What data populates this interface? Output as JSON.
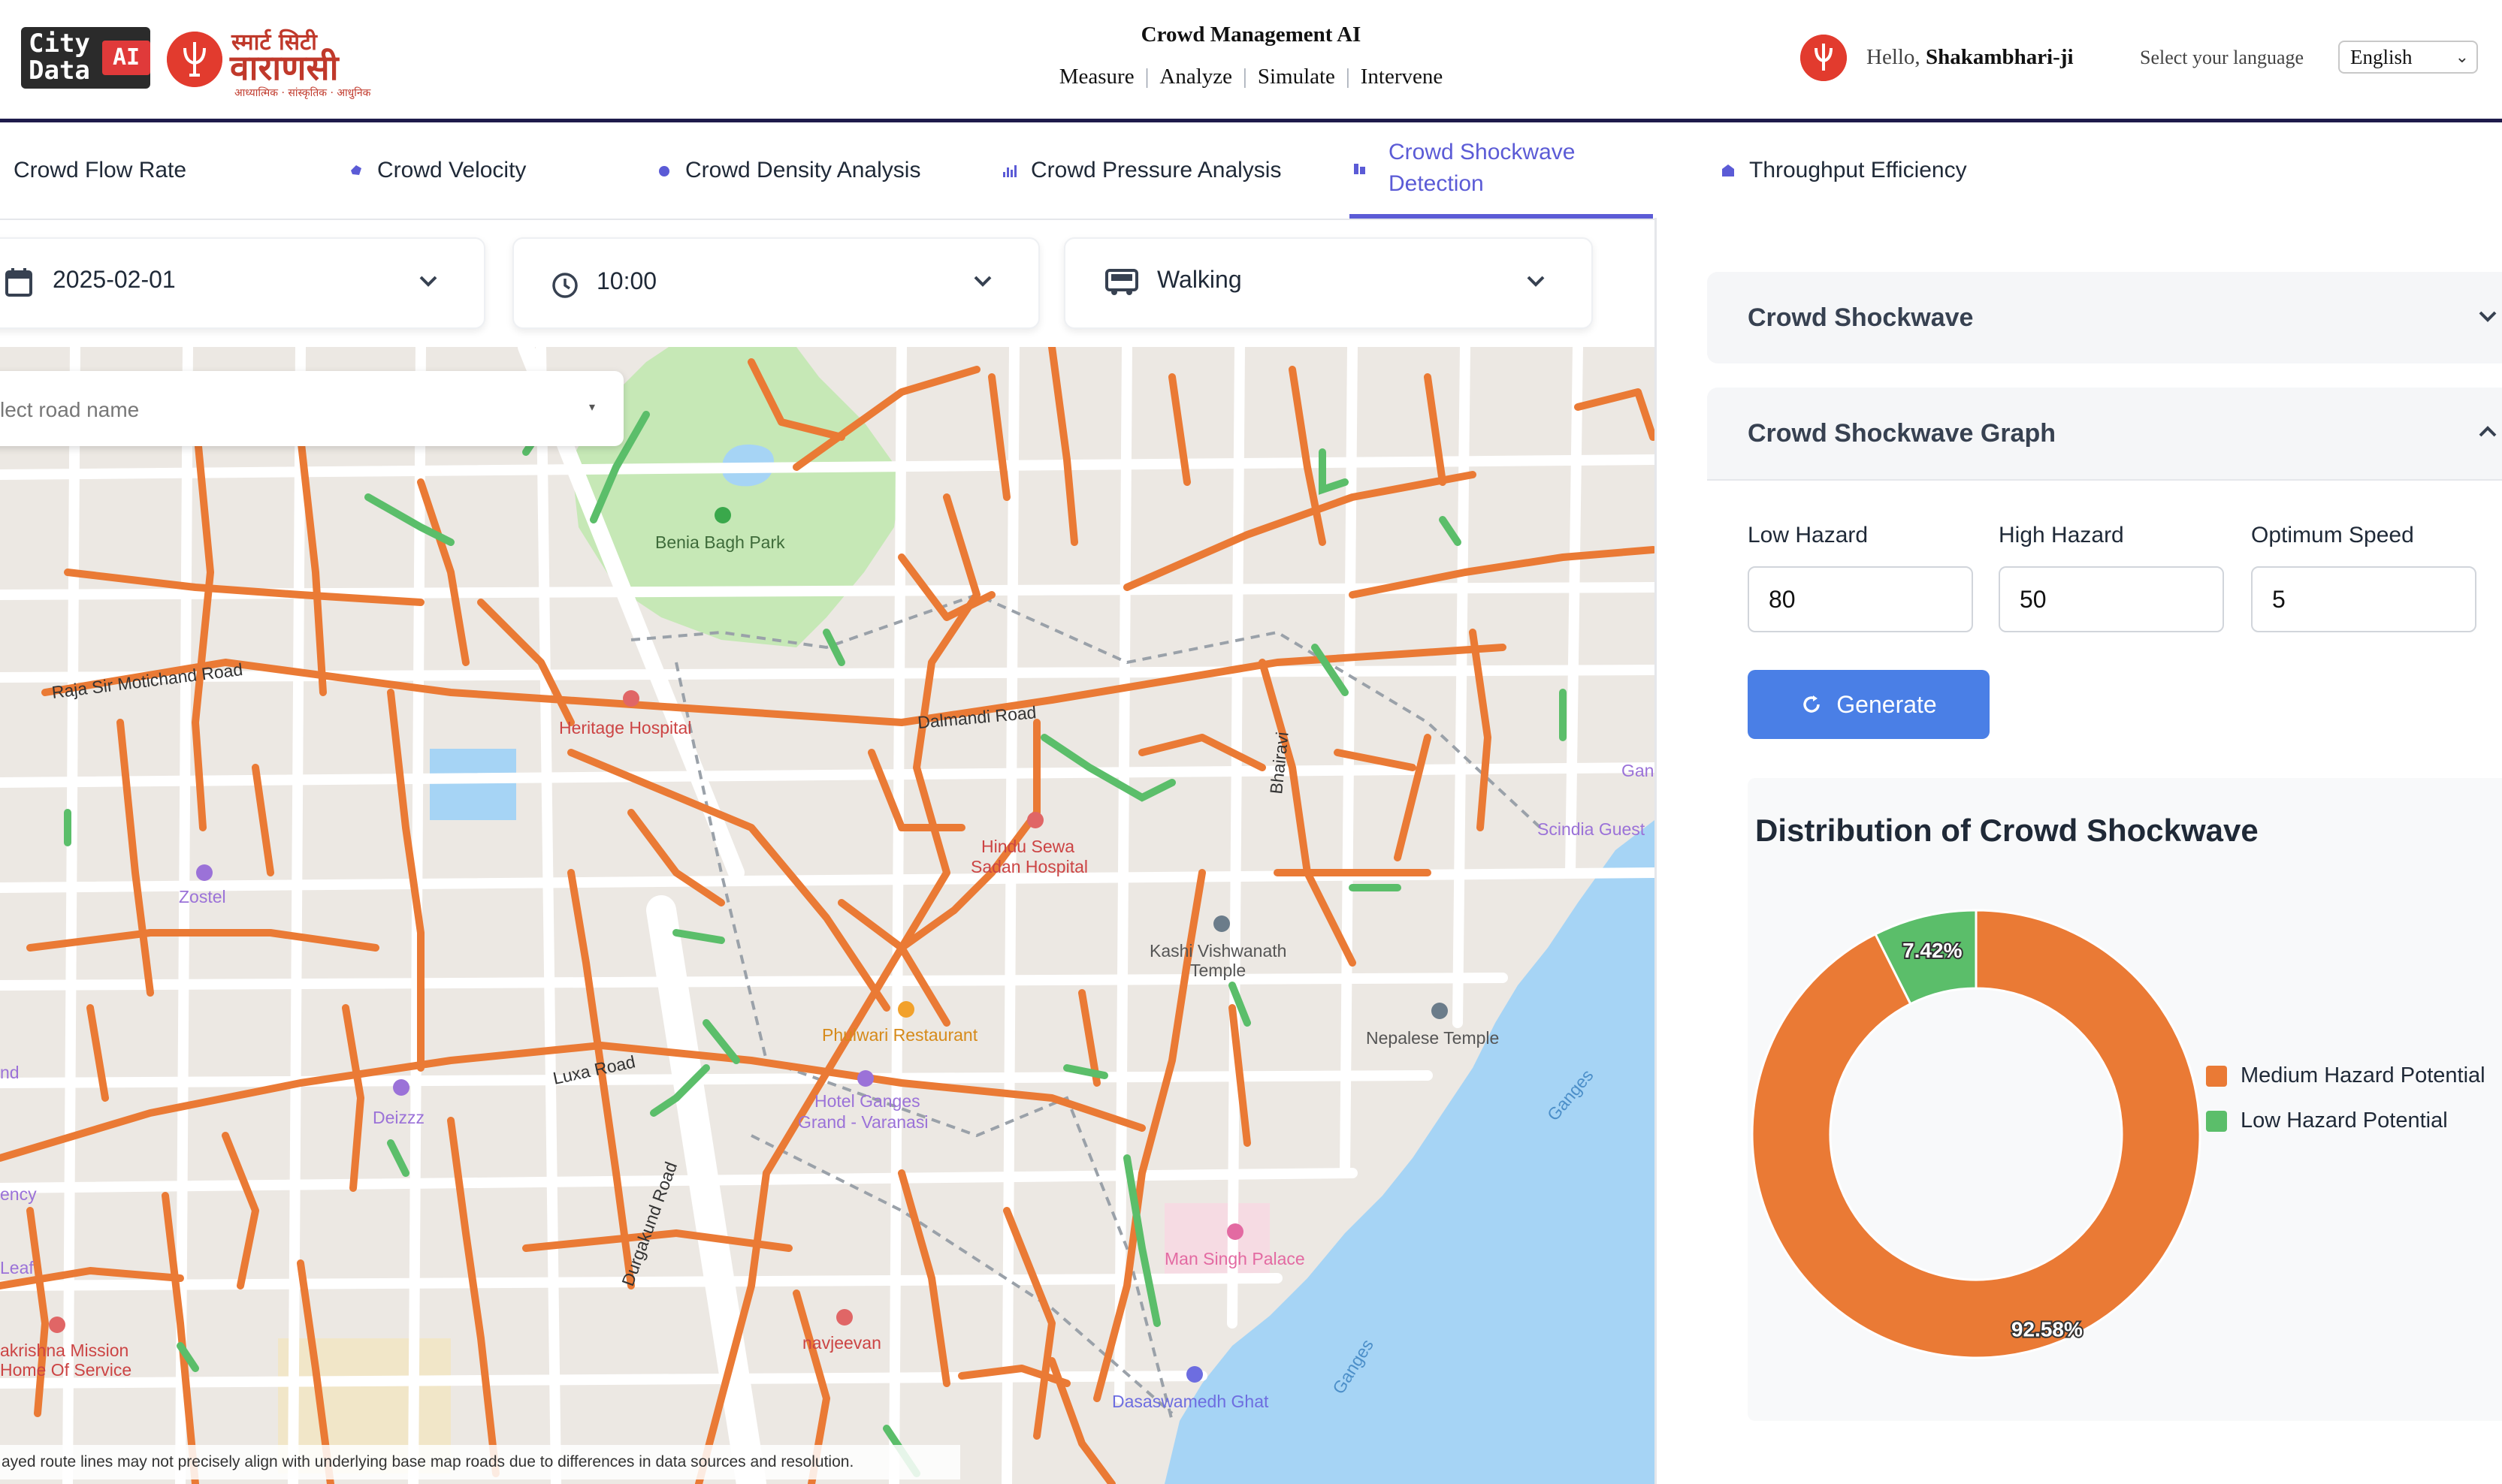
{
  "header": {
    "logo_citydata_top": "City",
    "logo_citydata_bottom": "Data",
    "logo_ai": "AI",
    "smartcity_line1": "स्मार्ट सिटी",
    "smartcity_line2": "वाराणसी",
    "smartcity_line3": "आध्यात्मिक · सांस्कृतिक · आधुनिक",
    "title": "Crowd Management AI",
    "nav": [
      "Measure",
      "Analyze",
      "Simulate",
      "Intervene"
    ],
    "greeting": "Hello,",
    "user_name": "Shakambhari-ji",
    "language_label": "Select your language",
    "language_value": "English"
  },
  "tabs": [
    {
      "label": "Crowd Flow Rate",
      "icon": "flow-icon"
    },
    {
      "label": "Crowd Velocity",
      "icon": "velocity-icon"
    },
    {
      "label": "Crowd Density Analysis",
      "icon": "density-icon"
    },
    {
      "label": "Crowd Pressure Analysis",
      "icon": "bar-chart-icon"
    },
    {
      "label": "Crowd Shockwave Detection",
      "icon": "shockwave-icon",
      "active": true
    },
    {
      "label": "Throughput Efficiency",
      "icon": "throughput-icon"
    }
  ],
  "filters": {
    "date": "2025-02-01",
    "time": "10:00",
    "mode": "Walking"
  },
  "map": {
    "road_select_placeholder": "lect road name",
    "note": "ayed route lines may not precisely align with underlying base map roads due to differences in data sources and resolution.",
    "labels": {
      "benia_bagh": "Benia Bagh Park",
      "raja_road": "Raja Sir Motichand Road",
      "heritage": "Heritage Hospital",
      "dalmandi": "Dalmandi Road",
      "bhairavi": "Bhairavi",
      "gan": "Gan",
      "scindia": "Scindia Guest",
      "zostel": "Zostel",
      "hindu_sewa_1": "Hindu Sewa",
      "hindu_sewa_2": "Sadan Hospital",
      "kashi_1": "Kashi Vishwanath",
      "kashi_2": "Temple",
      "nepalese": "Nepalese Temple",
      "phulwari": "Phulwari Restaurant",
      "luxa": "Luxa Road",
      "hotel_1": "Hotel Ganges",
      "hotel_2": "Grand - Varanasi",
      "ganges_1": "Ganges",
      "ganges_2": "Ganges",
      "nd": "nd",
      "deizzz": "Deizzz",
      "ency": "ency",
      "leaf": "Leaf",
      "durgakund": "Durgakund Road",
      "man_singh": "Man Singh Palace",
      "mission_1": "akrishna Mission",
      "mission_2": "Home Of Service",
      "navjeevan": "navjeevan",
      "dasaswamedh": "Dasaswamedh Ghat"
    }
  },
  "panel": {
    "section1_title": "Crowd Shockwave",
    "section2_title": "Crowd Shockwave Graph",
    "low_hazard_label": "Low Hazard",
    "low_hazard_value": "80",
    "high_hazard_label": "High Hazard",
    "high_hazard_value": "50",
    "optimum_speed_label": "Optimum Speed",
    "optimum_speed_value": "5",
    "generate_label": "Generate"
  },
  "colors": {
    "accent": "#5b5bd6",
    "medium_hazard": "#ea7a35",
    "low_hazard": "#5bbe6a",
    "button": "#4a7fe6",
    "water": "#a6d4f5",
    "park": "#c6e8b6"
  },
  "chart_data": {
    "type": "pie",
    "title": "Distribution of Crowd Shockwave",
    "series": [
      {
        "name": "Medium Hazard Potential",
        "value": 92.58,
        "label": "92.58%",
        "color": "#ea7a35"
      },
      {
        "name": "Low Hazard Potential",
        "value": 7.42,
        "label": "7.42%",
        "color": "#5bbe6a"
      }
    ],
    "legend_position": "right"
  }
}
